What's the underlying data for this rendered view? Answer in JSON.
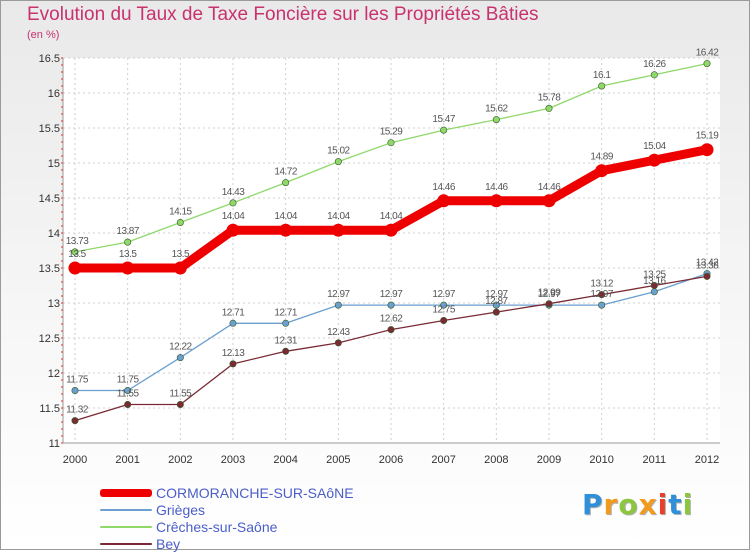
{
  "brand": {
    "text": "Proxiti",
    "colors": [
      "#2f8fd8",
      "#f29a1c",
      "#8cc63f",
      "#f29a1c",
      "#e8402a",
      "#2f8fd8",
      "#8cc63f"
    ]
  },
  "chart_data": {
    "type": "line",
    "title": "Evolution du Taux de Taxe Foncière sur les Propriétés Bâties",
    "subtitle": "(en %)",
    "xlabel": "",
    "ylabel": "",
    "ylim": [
      11,
      16.5
    ],
    "yticks": [
      "11",
      "11.5",
      "12",
      "12.5",
      "13",
      "13.5",
      "14",
      "14.5",
      "15",
      "15.5",
      "16",
      "16.5"
    ],
    "grid": true,
    "categories": [
      "2000",
      "2001",
      "2002",
      "2003",
      "2004",
      "2005",
      "2006",
      "2007",
      "2008",
      "2009",
      "2010",
      "2011",
      "2012"
    ],
    "series": [
      {
        "name": "CORMORANCHE-SUR-SAôNE",
        "color": "#ee0000",
        "emphasis": true,
        "values": [
          13.5,
          13.5,
          13.5,
          14.04,
          14.04,
          14.04,
          14.04,
          14.46,
          14.46,
          14.46,
          14.89,
          15.04,
          15.19
        ],
        "labels": [
          "13.5",
          "13.5",
          "13.5",
          "14.04",
          "14.04",
          "14.04",
          "14.04",
          "14.46",
          "14.46",
          "14.46",
          "14.89",
          "15.04",
          "15.19"
        ]
      },
      {
        "name": "Grièges",
        "color": "#6a9fcf",
        "values": [
          11.75,
          11.75,
          12.22,
          12.71,
          12.71,
          12.97,
          12.97,
          12.97,
          12.97,
          12.97,
          12.97,
          13.16,
          13.42
        ],
        "labels": [
          "11.75",
          "11.75",
          "12.22",
          "12.71",
          "12.71",
          "12.97",
          "12.97",
          "12.97",
          "12.97",
          "12.97",
          "12.97",
          "13.16",
          "13.42"
        ]
      },
      {
        "name": "Crêches-sur-Saône",
        "color": "#8fd86a",
        "values": [
          13.73,
          13.87,
          14.15,
          14.43,
          14.72,
          15.02,
          15.29,
          15.47,
          15.62,
          15.78,
          16.1,
          16.26,
          16.42
        ],
        "labels": [
          "13.73",
          "13.87",
          "14.15",
          "14.43",
          "14.72",
          "15.02",
          "15.29",
          "15.47",
          "15.62",
          "15.78",
          "16.1",
          "16.26",
          "16.42"
        ]
      },
      {
        "name": "Bey",
        "color": "#7a2a34",
        "values": [
          11.32,
          11.55,
          11.55,
          12.13,
          12.31,
          12.43,
          12.62,
          12.75,
          12.87,
          12.99,
          13.12,
          13.25,
          13.38
        ],
        "labels": [
          "11.32",
          "11.55",
          "11.55",
          "12.13",
          "12.31",
          "12.43",
          "12.62",
          "12.75",
          "12.87",
          "12.99",
          "13.12",
          "13.25",
          "13.38"
        ]
      }
    ]
  }
}
